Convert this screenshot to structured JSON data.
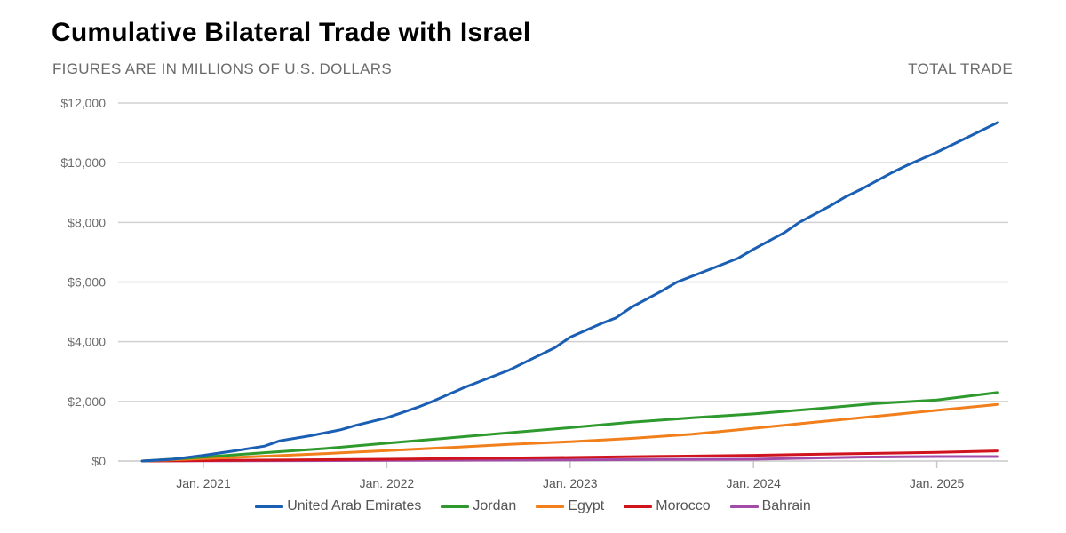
{
  "header": {
    "title": "Cumulative Bilateral Trade with Israel",
    "subtitle": "FIGURES ARE IN MILLIONS OF U.S. DOLLARS",
    "mode_label": "TOTAL TRADE"
  },
  "chart_data": {
    "type": "line",
    "title": "Cumulative Bilateral Trade with Israel",
    "subtitle": "FIGURES ARE IN MILLIONS OF U.S. DOLLARS",
    "xlabel": "",
    "ylabel": "",
    "x_start": "2020-09",
    "x_end": "2025-05",
    "x_unit": "month",
    "ylim": [
      0,
      12000
    ],
    "yticks": [
      0,
      2000,
      4000,
      6000,
      8000,
      10000,
      12000
    ],
    "ytick_labels": [
      "$0",
      "$2,000",
      "$4,000",
      "$6,000",
      "$8,000",
      "$10,000",
      "$12,000"
    ],
    "xticks": [
      {
        "label": "Jan. 2021",
        "month_index": 4
      },
      {
        "label": "Jan. 2022",
        "month_index": 16
      },
      {
        "label": "Jan. 2023",
        "month_index": 28
      },
      {
        "label": "Jan. 2024",
        "month_index": 40
      },
      {
        "label": "Jan. 2025",
        "month_index": 52
      }
    ],
    "grid": true,
    "legend_position": "bottom",
    "series": [
      {
        "name": "United Arab Emirates",
        "color": "#1a5fb4",
        "points": [
          [
            0,
            0
          ],
          [
            2,
            60
          ],
          [
            4,
            190
          ],
          [
            6,
            340
          ],
          [
            8,
            500
          ],
          [
            9,
            680
          ],
          [
            11,
            850
          ],
          [
            13,
            1050
          ],
          [
            14,
            1200
          ],
          [
            16,
            1450
          ],
          [
            18,
            1800
          ],
          [
            19,
            2000
          ],
          [
            21,
            2450
          ],
          [
            22,
            2650
          ],
          [
            24,
            3050
          ],
          [
            25,
            3300
          ],
          [
            27,
            3800
          ],
          [
            28,
            4150
          ],
          [
            30,
            4600
          ],
          [
            31,
            4800
          ],
          [
            32,
            5150
          ],
          [
            34,
            5700
          ],
          [
            35,
            6000
          ],
          [
            37,
            6400
          ],
          [
            39,
            6800
          ],
          [
            40,
            7100
          ],
          [
            42,
            7650
          ],
          [
            43,
            8000
          ],
          [
            45,
            8550
          ],
          [
            46,
            8850
          ],
          [
            47,
            9100
          ],
          [
            49,
            9650
          ],
          [
            50,
            9900
          ],
          [
            52,
            10350
          ],
          [
            53,
            10600
          ],
          [
            54,
            10850
          ],
          [
            56,
            11350
          ]
        ]
      },
      {
        "name": "Jordan",
        "color": "#2e9a2e",
        "points": [
          [
            0,
            0
          ],
          [
            4,
            130
          ],
          [
            8,
            280
          ],
          [
            12,
            420
          ],
          [
            16,
            600
          ],
          [
            20,
            770
          ],
          [
            24,
            950
          ],
          [
            28,
            1120
          ],
          [
            32,
            1300
          ],
          [
            36,
            1450
          ],
          [
            40,
            1580
          ],
          [
            44,
            1750
          ],
          [
            48,
            1930
          ],
          [
            52,
            2050
          ],
          [
            56,
            2300
          ]
        ]
      },
      {
        "name": "Egypt",
        "color": "#f07f1c",
        "points": [
          [
            0,
            0
          ],
          [
            4,
            80
          ],
          [
            8,
            160
          ],
          [
            12,
            250
          ],
          [
            16,
            350
          ],
          [
            20,
            450
          ],
          [
            24,
            560
          ],
          [
            28,
            650
          ],
          [
            32,
            760
          ],
          [
            36,
            900
          ],
          [
            40,
            1100
          ],
          [
            44,
            1300
          ],
          [
            48,
            1500
          ],
          [
            52,
            1700
          ],
          [
            56,
            1900
          ]
        ]
      },
      {
        "name": "Morocco",
        "color": "#d0141e",
        "points": [
          [
            0,
            0
          ],
          [
            4,
            15
          ],
          [
            10,
            40
          ],
          [
            16,
            60
          ],
          [
            22,
            90
          ],
          [
            28,
            120
          ],
          [
            34,
            155
          ],
          [
            40,
            190
          ],
          [
            46,
            240
          ],
          [
            52,
            290
          ],
          [
            56,
            340
          ]
        ]
      },
      {
        "name": "Bahrain",
        "color": "#a24ba8",
        "points": [
          [
            0,
            0
          ],
          [
            4,
            5
          ],
          [
            10,
            12
          ],
          [
            16,
            20
          ],
          [
            22,
            30
          ],
          [
            28,
            40
          ],
          [
            34,
            50
          ],
          [
            40,
            60
          ],
          [
            44,
            100
          ],
          [
            47,
            130
          ],
          [
            52,
            150
          ],
          [
            56,
            150
          ]
        ]
      }
    ]
  }
}
